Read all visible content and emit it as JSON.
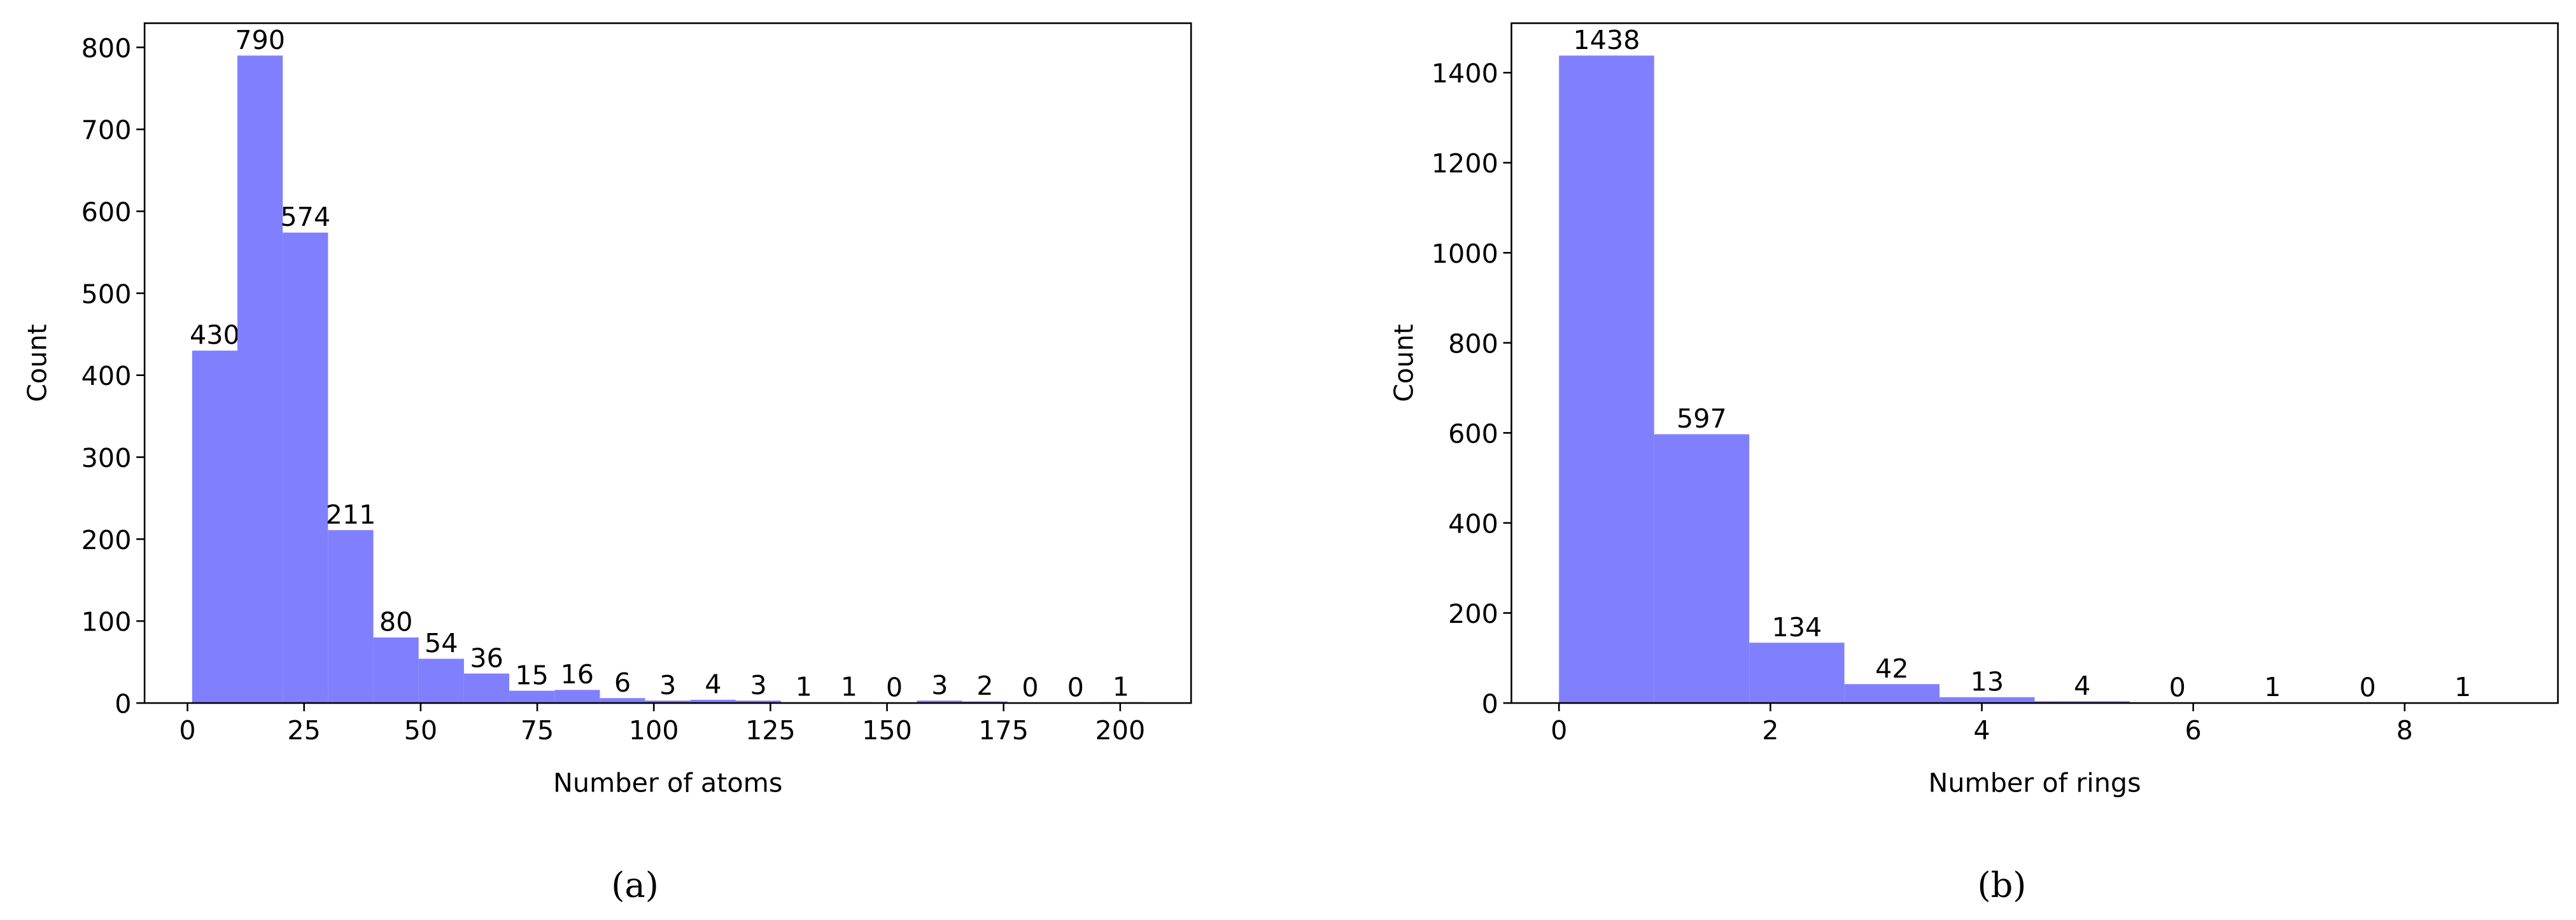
{
  "chart_data": [
    {
      "type": "histogram",
      "caption": "(a)",
      "xlabel": "Number of atoms",
      "ylabel": "Count",
      "color": "#8080ff",
      "bins": [
        1,
        10.71,
        20.43,
        30.14,
        39.86,
        49.57,
        59.29,
        69,
        78.71,
        88.43,
        98.14,
        107.86,
        117.57,
        127.29,
        137,
        146.71,
        156.43,
        166.14,
        175.86,
        185.57,
        195.29,
        205
      ],
      "values": [
        430,
        790,
        574,
        211,
        80,
        54,
        36,
        15,
        16,
        6,
        3,
        4,
        3,
        1,
        1,
        0,
        3,
        2,
        0,
        0,
        1
      ],
      "xlim": [
        -9.2,
        215.2
      ],
      "xticks": [
        0,
        25,
        50,
        75,
        100,
        125,
        150,
        175,
        200
      ],
      "ylim": [
        0,
        829.5
      ],
      "yticks": [
        0,
        100,
        200,
        300,
        400,
        500,
        600,
        700,
        800
      ]
    },
    {
      "type": "histogram",
      "caption": "(b)",
      "xlabel": "Number of rings",
      "ylabel": "Count",
      "color": "#8080ff",
      "bins": [
        0,
        0.9,
        1.8,
        2.7,
        3.6,
        4.5,
        5.4,
        6.3,
        7.2,
        8.1,
        9
      ],
      "values": [
        1438,
        597,
        134,
        42,
        13,
        4,
        0,
        1,
        0,
        1
      ],
      "xlim": [
        -0.45,
        9.45
      ],
      "xticks": [
        0,
        2,
        4,
        6,
        8
      ],
      "ylim": [
        0,
        1509.9
      ],
      "yticks": [
        0,
        200,
        400,
        600,
        800,
        1000,
        1200,
        1400
      ]
    }
  ]
}
